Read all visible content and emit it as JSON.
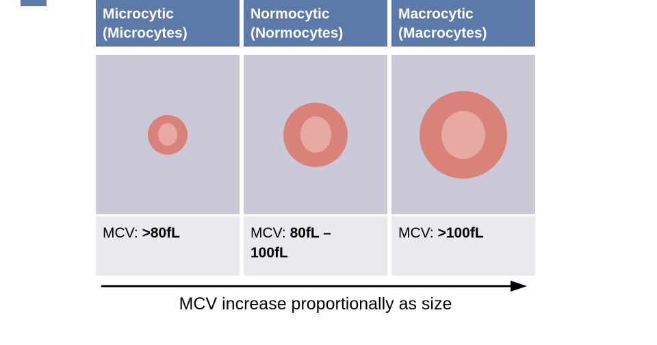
{
  "table": {
    "columns": [
      {
        "header": {
          "line1": "Microcytic",
          "line2": "(Microcytes)"
        },
        "mcv": {
          "label": "MCV: ",
          "value": ">80fL"
        },
        "cell": {
          "name": "microcyte",
          "outer": 58,
          "inner_w": 28,
          "inner_h": 33
        }
      },
      {
        "header": {
          "line1": "Normocytic",
          "line2": "(Normocytes)"
        },
        "mcv": {
          "label": "MCV: ",
          "value": "80fL –\n100fL"
        },
        "cell": {
          "name": "normocyte",
          "outer": 94,
          "inner_w": 45,
          "inner_h": 53
        }
      },
      {
        "header": {
          "line1": "Macrocytic",
          "line2": "(Macrocytes)"
        },
        "mcv": {
          "label": "MCV: ",
          "value": ">100fL"
        },
        "cell": {
          "name": "macrocyte",
          "outer": 128,
          "inner_w": 64,
          "inner_h": 70
        }
      }
    ]
  },
  "arrow": {
    "caption": "MCV increase proportionally as size"
  },
  "colors": {
    "header_bg": "#5b79a9",
    "header_text": "#ffffff",
    "body_bg": "#c9c9d8",
    "mcv_bg": "#e9e9ee",
    "rbc_outer": "#d9827a",
    "rbc_inner": "#e6aaa2",
    "text": "#000000"
  }
}
